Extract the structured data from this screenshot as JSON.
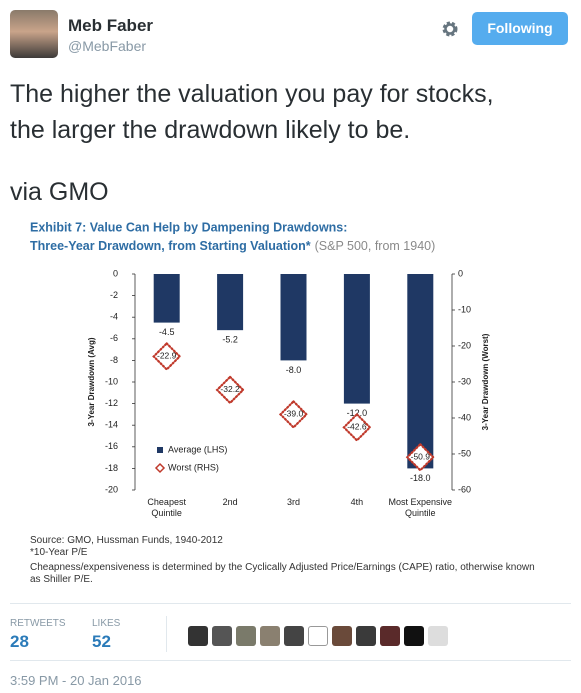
{
  "user": {
    "name": "Meb Faber",
    "handle": "@MebFaber"
  },
  "follow_button": "Following",
  "tweet_text": [
    "The higher the valuation you pay for stocks,",
    "the larger the drawdown likely to be."
  ],
  "tweet_via": "via GMO",
  "chart_data": {
    "type": "bar",
    "title": "Exhibit 7:  Value Can Help by Dampening Drawdowns:",
    "subtitle": "Three-Year Drawdown, from Starting Valuation*",
    "subtitle_note": "(S&P 500, from 1940)",
    "categories": [
      "Cheapest Quintile",
      "2nd",
      "3rd",
      "4th",
      "Most Expensive Quintile"
    ],
    "ylabel": "3-Year Drawdown (Avg)",
    "y2label": "3-Year Drawdown (Worst)",
    "ylim": [
      -20,
      0
    ],
    "yticks": [
      0,
      -2,
      -4,
      -6,
      -8,
      -10,
      -12,
      -14,
      -16,
      -18,
      -20
    ],
    "y2lim": [
      -60,
      0
    ],
    "y2ticks": [
      0,
      -10,
      -20,
      -30,
      -40,
      -50,
      -60
    ],
    "series": [
      {
        "name": "Average (LHS)",
        "color": "#1f3864",
        "values": [
          -4.5,
          -5.2,
          -8.0,
          -12.0,
          -18.0
        ],
        "value_labels": [
          "-4.5",
          "-5.2",
          "-8.0",
          "-12.0",
          "-18.0"
        ]
      },
      {
        "name": "Worst (RHS)",
        "color": "#c0392b",
        "axis": "y2",
        "values": [
          -22.9,
          -32.2,
          -39.0,
          -42.6,
          -50.9
        ],
        "value_labels": [
          "-22.9",
          "-32.2",
          "-39.0",
          "-42.6",
          "-50.9"
        ]
      }
    ],
    "notes": [
      "Source: GMO, Hussman Funds, 1940-2012",
      "*10-Year P/E",
      "Cheapness/expensiveness is determined by the Cyclically Adjusted Price/Earnings (CAPE) ratio, otherwise known",
      "as Shiller P/E."
    ]
  },
  "stats": {
    "retweets_label": "RETWEETS",
    "retweets": "28",
    "likes_label": "LIKES",
    "likes": "52"
  },
  "timestamp": "3:59 PM - 20 Jan 2016"
}
